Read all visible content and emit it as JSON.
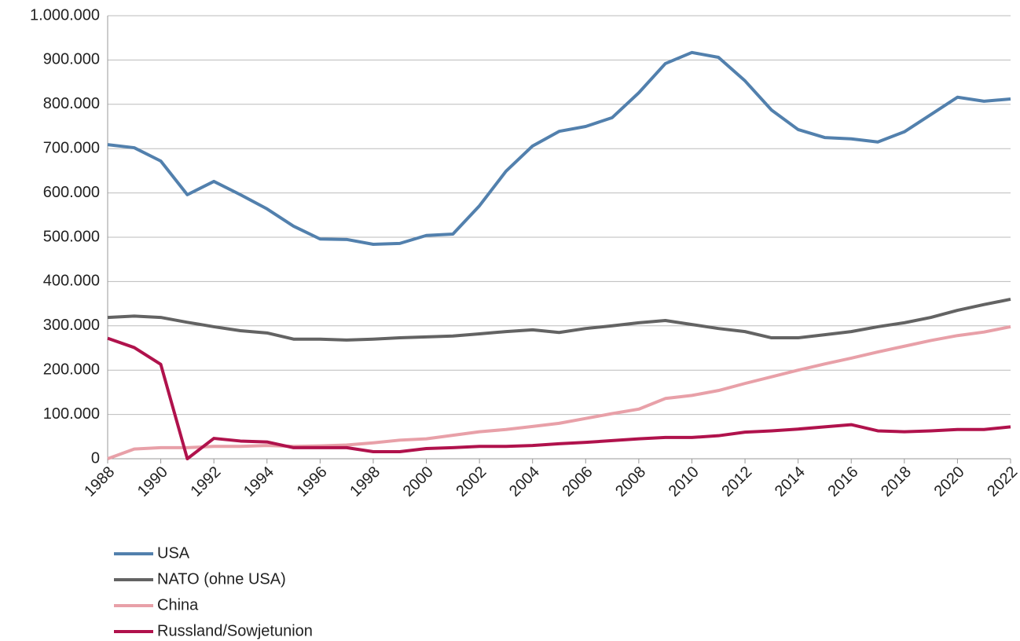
{
  "chart_data": {
    "type": "line",
    "x": [
      1988,
      1989,
      1990,
      1991,
      1992,
      1993,
      1994,
      1995,
      1996,
      1997,
      1998,
      1999,
      2000,
      2001,
      2002,
      2003,
      2004,
      2005,
      2006,
      2007,
      2008,
      2009,
      2010,
      2011,
      2012,
      2013,
      2014,
      2015,
      2016,
      2017,
      2018,
      2019,
      2020,
      2021,
      2022
    ],
    "series": [
      {
        "name": "USA",
        "color": "#5280ad",
        "values": [
          709000,
          702000,
          672000,
          596000,
          626000,
          596000,
          564000,
          525000,
          496000,
          495000,
          484000,
          486000,
          504000,
          507000,
          571000,
          649000,
          706000,
          739000,
          750000,
          770000,
          826000,
          892000,
          917000,
          906000,
          853000,
          787000,
          743000,
          725000,
          722000,
          715000,
          738000,
          777000,
          816000,
          807000,
          812000
        ]
      },
      {
        "name": "NATO (ohne USA)",
        "color": "#636363",
        "values": [
          319000,
          322000,
          319000,
          308000,
          298000,
          289000,
          284000,
          270000,
          270000,
          268000,
          270000,
          273000,
          275000,
          277000,
          282000,
          287000,
          291000,
          285000,
          294000,
          300000,
          307000,
          312000,
          303000,
          294000,
          287000,
          273000,
          273000,
          280000,
          287000,
          298000,
          307000,
          319000,
          335000,
          348000,
          360000
        ]
      },
      {
        "name": "China",
        "color": "#e8a0a8",
        "values": [
          0,
          22000,
          25000,
          25000,
          28000,
          28000,
          30000,
          28000,
          29000,
          31000,
          36000,
          42000,
          45000,
          53000,
          61000,
          66000,
          73000,
          80000,
          91000,
          102000,
          112000,
          136000,
          143000,
          154000,
          170000,
          185000,
          200000,
          214000,
          227000,
          241000,
          254000,
          267000,
          278000,
          286000,
          298000
        ]
      },
      {
        "name": "Russland/Sowjetunion",
        "color": "#b0124c",
        "values": [
          272000,
          251000,
          213000,
          0,
          46000,
          40000,
          38000,
          25000,
          25000,
          25000,
          16000,
          16000,
          23000,
          25000,
          28000,
          28000,
          30000,
          34000,
          37000,
          41000,
          45000,
          48000,
          48000,
          52000,
          60000,
          63000,
          67000,
          72000,
          77000,
          63000,
          61000,
          63000,
          66000,
          66000,
          72000
        ]
      }
    ],
    "xlim": [
      1988,
      2022
    ],
    "xticks": [
      1988,
      1990,
      1992,
      1994,
      1996,
      1998,
      2000,
      2002,
      2004,
      2006,
      2008,
      2010,
      2012,
      2014,
      2016,
      2018,
      2020,
      2022
    ],
    "ylim": [
      0,
      1000000
    ],
    "yticks": [
      0,
      {
        "value": 100000,
        "label": "100.000"
      },
      {
        "value": 200000,
        "label": "200.000"
      },
      {
        "value": 300000,
        "label": "300.000"
      },
      {
        "value": 400000,
        "label": "400.000"
      },
      {
        "value": 500000,
        "label": "500.000"
      },
      {
        "value": 600000,
        "label": "600.000"
      },
      {
        "value": 700000,
        "label": "700.000"
      },
      {
        "value": 800000,
        "label": "800.000"
      },
      {
        "value": 900000,
        "label": "900.000"
      },
      {
        "value": 1000000,
        "label": "1.000.000"
      }
    ],
    "grid": true,
    "legend": "bottom-left"
  }
}
